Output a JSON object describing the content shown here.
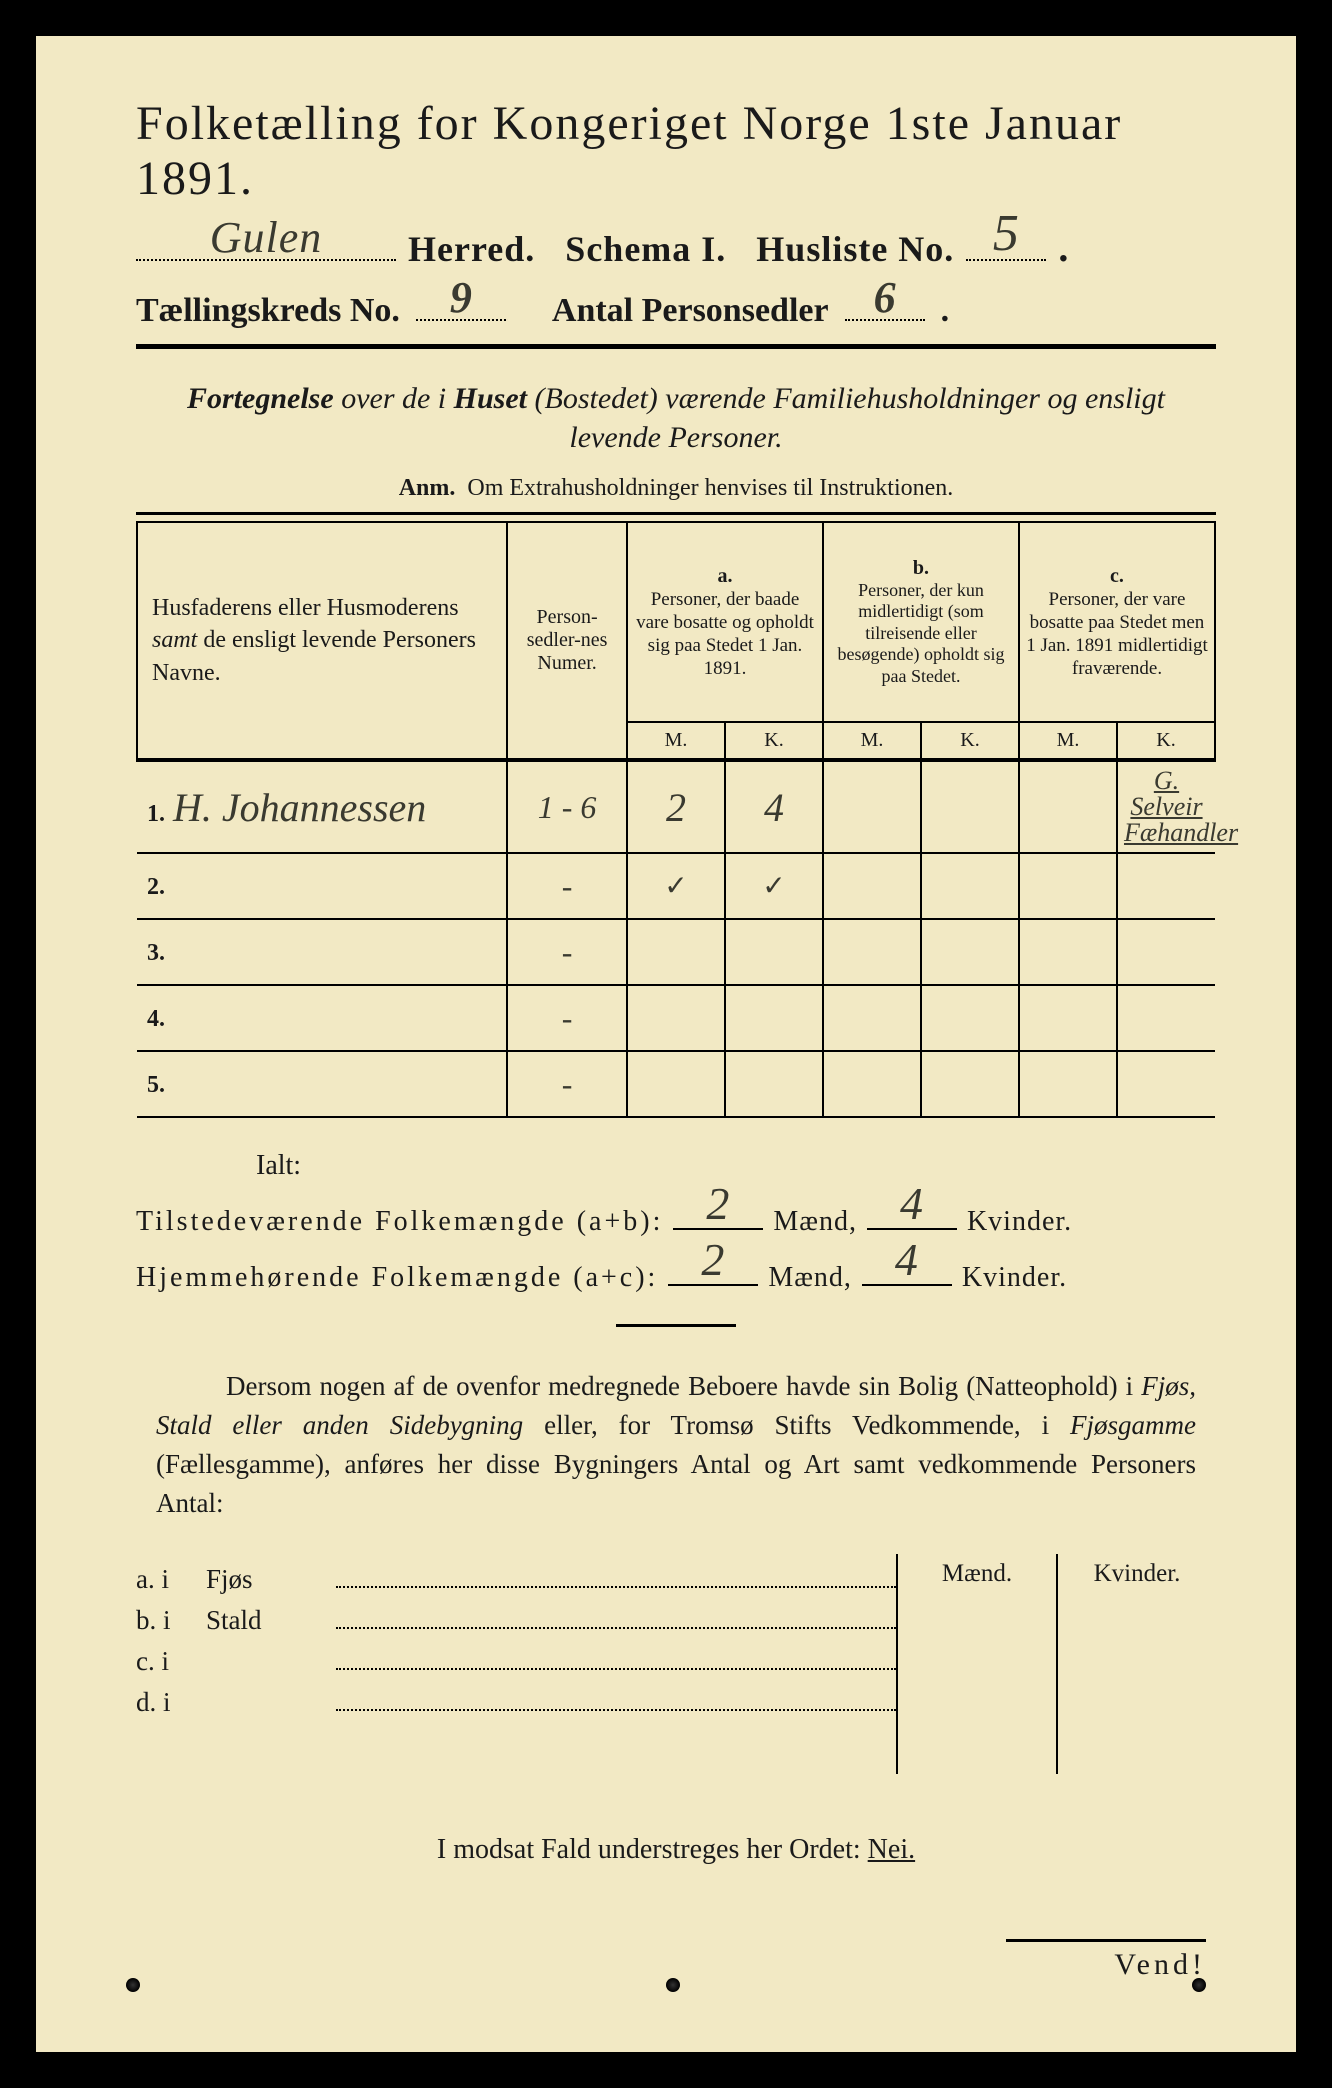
{
  "colors": {
    "paper": "#f2e9c4",
    "ink": "#1a1a1a",
    "handwriting": "#3a3a30",
    "border": "#000000"
  },
  "title": "Folketælling for Kongeriget Norge 1ste Januar 1891.",
  "line2": {
    "herred_value": "Gulen",
    "herred_label": "Herred.",
    "schema_label": "Schema I.",
    "husliste_label": "Husliste No.",
    "husliste_value": "5"
  },
  "line3": {
    "kreds_label": "Tællingskreds No.",
    "kreds_value": "9",
    "antal_label": "Antal Personsedler",
    "antal_value": "6"
  },
  "subtitle": "Fortegnelse over de i Huset (Bostedet) værende Familiehusholdninger og ensligt levende Personer.",
  "anm": "Anm.  Om Extrahusholdninger henvises til Instruktionen.",
  "table": {
    "col1": "Husfaderens eller Husmoderens samt de ensligt levende Personers Navne.",
    "col2": "Person-sedler-nes Numer.",
    "col_a_tag": "a.",
    "col_a": "Personer, der baade vare bosatte og opholdt sig paa Stedet 1 Jan. 1891.",
    "col_b_tag": "b.",
    "col_b": "Personer, der kun midlertidigt (som tilreisende eller besøgende) opholdt sig paa Stedet.",
    "col_c_tag": "c.",
    "col_c": "Personer, der vare bosatte paa Stedet men 1 Jan. 1891 midlertidigt fraværende.",
    "mk_m": "M.",
    "mk_k": "K.",
    "rows": [
      {
        "n": "1.",
        "name": "H. Johannessen",
        "num": "1 - 6",
        "a_m": "2",
        "a_k": "4",
        "b_m": "",
        "b_k": "",
        "c_m": "",
        "c_k": "G. Selveir",
        "c_k2": "Fæhandler"
      },
      {
        "n": "2.",
        "name": "",
        "num": "-",
        "a_m": "✓",
        "a_k": "✓",
        "b_m": "",
        "b_k": "",
        "c_m": "",
        "c_k": ""
      },
      {
        "n": "3.",
        "name": "",
        "num": "-",
        "a_m": "",
        "a_k": "",
        "b_m": "",
        "b_k": "",
        "c_m": "",
        "c_k": ""
      },
      {
        "n": "4.",
        "name": "",
        "num": "-",
        "a_m": "",
        "a_k": "",
        "b_m": "",
        "b_k": "",
        "c_m": "",
        "c_k": ""
      },
      {
        "n": "5.",
        "name": "",
        "num": "-",
        "a_m": "",
        "a_k": "",
        "b_m": "",
        "b_k": "",
        "c_m": "",
        "c_k": ""
      }
    ]
  },
  "ialt_label": "Ialt:",
  "sum1": {
    "label": "Tilstedeværende Folkemængde (a+b):",
    "m": "2",
    "maend": "Mænd,",
    "k": "4",
    "kvinder": "Kvinder."
  },
  "sum2": {
    "label": "Hjemmehørende Folkemængde (a+c):",
    "m": "2",
    "maend": "Mænd,",
    "k": "4",
    "kvinder": "Kvinder."
  },
  "para": "Dersom nogen af de ovenfor medregnede Beboere havde sin Bolig (Natteophold) i Fjøs, Stald eller anden Sidebygning eller, for Tromsø Stifts Vedkommende, i Fjøsgamme (Fællesgamme), anføres her disse Bygningers Antal og Art samt vedkommende Personers Antal:",
  "side": {
    "rows": [
      {
        "lab": "a.  i",
        "word": "Fjøs"
      },
      {
        "lab": "b.  i",
        "word": "Stald"
      },
      {
        "lab": "c.  i",
        "word": ""
      },
      {
        "lab": "d.  i",
        "word": ""
      }
    ],
    "maend": "Mænd.",
    "kvinder": "Kvinder."
  },
  "nei_pre": "I modsat Fald understreges her Ordet: ",
  "nei": "Nei.",
  "vend": "Vend!"
}
